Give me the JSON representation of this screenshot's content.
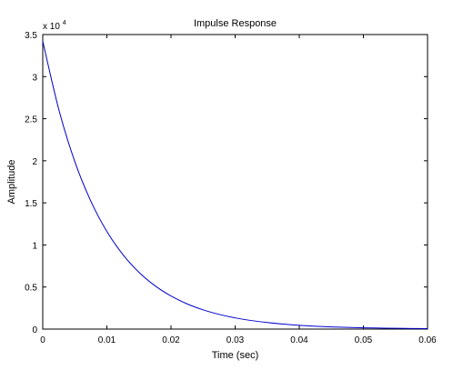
{
  "figure": {
    "background": "#ffffff",
    "axes_color": "#000000",
    "line_color": "#0000cc"
  },
  "chart_data": {
    "type": "line",
    "title": "Impulse Response",
    "xlabel": "Time (sec)",
    "ylabel": "Amplitude",
    "xlim": [
      0,
      0.06
    ],
    "ylim": [
      0,
      3.5
    ],
    "y_exponent_label": "x 10",
    "y_exponent_power": "4",
    "grid": false,
    "xticks": [
      0,
      0.01,
      0.02,
      0.03,
      0.04,
      0.05,
      0.06
    ],
    "xtick_labels": [
      "0",
      "0.01",
      "0.02",
      "0.03",
      "0.04",
      "0.05",
      "0.06"
    ],
    "yticks": [
      0,
      0.5,
      1,
      1.5,
      2,
      2.5,
      3,
      3.5
    ],
    "ytick_labels": [
      "0",
      "0.5",
      "1",
      "1.5",
      "2",
      "2.5",
      "3",
      "3.5"
    ],
    "series": [
      {
        "color": "#0000cc",
        "x": [
          0,
          0.0025,
          0.005,
          0.0075,
          0.01,
          0.0125,
          0.015,
          0.0175,
          0.02,
          0.0225,
          0.025,
          0.0275,
          0.03,
          0.0325,
          0.035,
          0.0375,
          0.04,
          0.0425,
          0.045,
          0.0475,
          0.05,
          0.0525,
          0.055,
          0.0575,
          0.06
        ],
        "y": [
          3.42,
          2.61,
          1.99,
          1.52,
          1.16,
          0.885,
          0.675,
          0.515,
          0.393,
          0.3,
          0.229,
          0.175,
          0.133,
          0.102,
          0.078,
          0.059,
          0.045,
          0.034,
          0.026,
          0.02,
          0.015,
          0.012,
          0.009,
          0.007,
          0.005
        ]
      }
    ]
  }
}
